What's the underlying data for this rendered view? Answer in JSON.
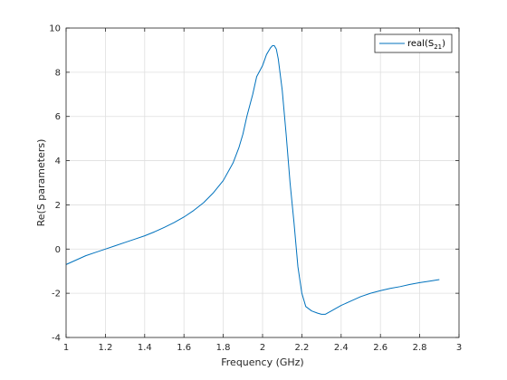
{
  "chart_data": {
    "type": "line",
    "xlabel": "Frequency (GHz)",
    "ylabel": "Re(S parameters)",
    "xlim": [
      1,
      3
    ],
    "ylim": [
      -4,
      10
    ],
    "x_ticks": [
      "1",
      "1.2",
      "1.4",
      "1.6",
      "1.8",
      "2",
      "2.2",
      "2.4",
      "2.6",
      "2.8",
      "3"
    ],
    "y_ticks": [
      "-4",
      "-2",
      "0",
      "2",
      "4",
      "6",
      "8",
      "10"
    ],
    "grid": true,
    "legend_position": "top-right",
    "legend": {
      "prefix": "real(S",
      "subscript": "21",
      "suffix": ")"
    },
    "series": [
      {
        "name": "real(S21)",
        "color": "#0072bd",
        "x": [
          1.0,
          1.05,
          1.1,
          1.15,
          1.2,
          1.25,
          1.3,
          1.35,
          1.4,
          1.45,
          1.5,
          1.55,
          1.6,
          1.65,
          1.7,
          1.75,
          1.8,
          1.85,
          1.88,
          1.9,
          1.92,
          1.95,
          1.97,
          2.0,
          2.02,
          2.04,
          2.05,
          2.06,
          2.07,
          2.08,
          2.1,
          2.12,
          2.14,
          2.16,
          2.18,
          2.2,
          2.22,
          2.25,
          2.28,
          2.3,
          2.32,
          2.35,
          2.4,
          2.45,
          2.5,
          2.55,
          2.6,
          2.65,
          2.7,
          2.75,
          2.8,
          2.85,
          2.9
        ],
        "y": [
          -0.7,
          -0.5,
          -0.3,
          -0.15,
          0.0,
          0.15,
          0.3,
          0.45,
          0.6,
          0.78,
          0.98,
          1.2,
          1.45,
          1.75,
          2.1,
          2.55,
          3.1,
          3.9,
          4.6,
          5.2,
          6.0,
          7.0,
          7.8,
          8.3,
          8.8,
          9.1,
          9.2,
          9.2,
          9.05,
          8.6,
          7.2,
          5.2,
          3.0,
          1.2,
          -0.8,
          -2.0,
          -2.6,
          -2.8,
          -2.9,
          -2.95,
          -2.95,
          -2.8,
          -2.55,
          -2.35,
          -2.15,
          -2.0,
          -1.88,
          -1.78,
          -1.7,
          -1.6,
          -1.52,
          -1.45,
          -1.38
        ]
      }
    ]
  }
}
